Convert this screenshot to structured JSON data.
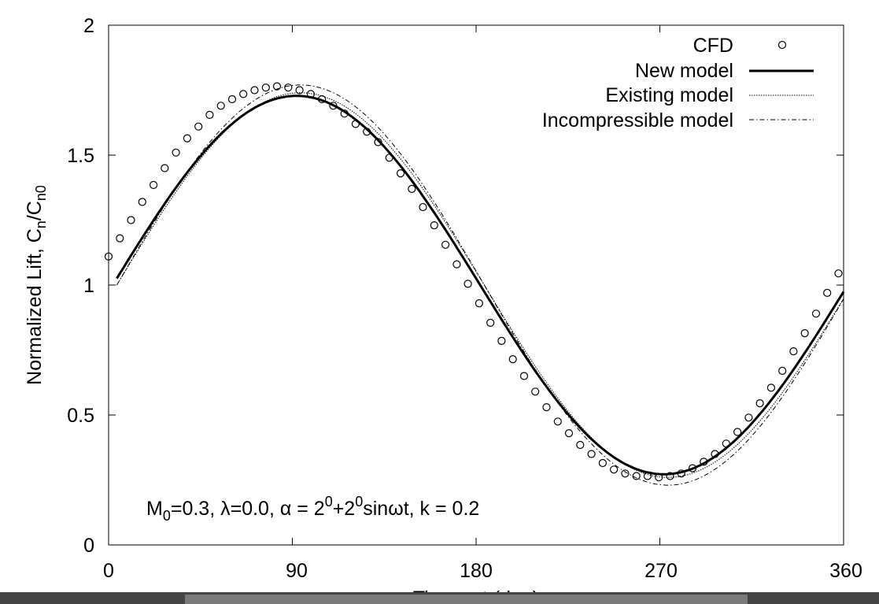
{
  "chart_data": {
    "type": "line",
    "ylabel": "Normalized Lift, C",
    "ylabel_sub1": "n",
    "ylabel_mid": "/C",
    "ylabel_sub2": "n0",
    "xlabel": "Time, ωt (deg)",
    "xlim": [
      0,
      360
    ],
    "ylim": [
      0,
      2
    ],
    "x_ticks": [
      "0",
      "90",
      "180",
      "270",
      "360"
    ],
    "y_ticks": [
      "0",
      "0.5",
      "1",
      "1.5",
      "2"
    ],
    "grid": false,
    "legend_position": "top-right",
    "annotation": {
      "p1": "M",
      "s1": "0",
      "p2": "=0.3, λ=0.0, α = 2",
      "s2": "0",
      "p3": "+2",
      "s3": "0",
      "p4": "sinωt, k = 0.2"
    },
    "series": [
      {
        "name": "CFD",
        "style": "markers",
        "x": [
          0,
          5.5,
          11,
          16.5,
          22,
          27.5,
          33,
          38.5,
          44,
          49.5,
          55,
          60.5,
          66,
          71.5,
          77,
          82.5,
          88,
          93.5,
          99,
          104.5,
          110,
          115.5,
          121,
          126.5,
          132,
          137.5,
          143,
          148.5,
          154,
          159.5,
          165,
          170.5,
          176,
          181.5,
          187,
          192.5,
          198,
          203.5,
          209,
          214.5,
          220,
          225.5,
          231,
          236.5,
          242,
          247.5,
          253,
          258.5,
          264,
          269.5,
          275,
          280.5,
          286,
          291.5,
          297,
          302.5,
          308,
          313.5,
          319,
          324.5,
          330,
          335.5,
          341,
          346.5,
          352,
          357.5
        ],
        "y": [
          1.11,
          1.18,
          1.25,
          1.32,
          1.385,
          1.45,
          1.51,
          1.565,
          1.61,
          1.655,
          1.69,
          1.715,
          1.735,
          1.75,
          1.76,
          1.765,
          1.76,
          1.75,
          1.735,
          1.715,
          1.69,
          1.66,
          1.62,
          1.59,
          1.55,
          1.49,
          1.43,
          1.37,
          1.3,
          1.23,
          1.155,
          1.08,
          1.005,
          0.93,
          0.855,
          0.785,
          0.715,
          0.65,
          0.59,
          0.53,
          0.475,
          0.43,
          0.385,
          0.35,
          0.315,
          0.29,
          0.275,
          0.265,
          0.265,
          0.26,
          0.265,
          0.275,
          0.295,
          0.32,
          0.35,
          0.39,
          0.435,
          0.49,
          0.545,
          0.605,
          0.67,
          0.745,
          0.815,
          0.89,
          0.97,
          1.045
        ]
      },
      {
        "name": "New model",
        "style": "solid"
      },
      {
        "name": "Existing model",
        "style": "dotted"
      },
      {
        "name": "Incompressible model",
        "style": "dashdot"
      }
    ]
  },
  "colors": {
    "line": "#000000",
    "background": "#ffffff",
    "bottom_bar": "#444444",
    "scroll_thumb": "#7a7a7a"
  }
}
